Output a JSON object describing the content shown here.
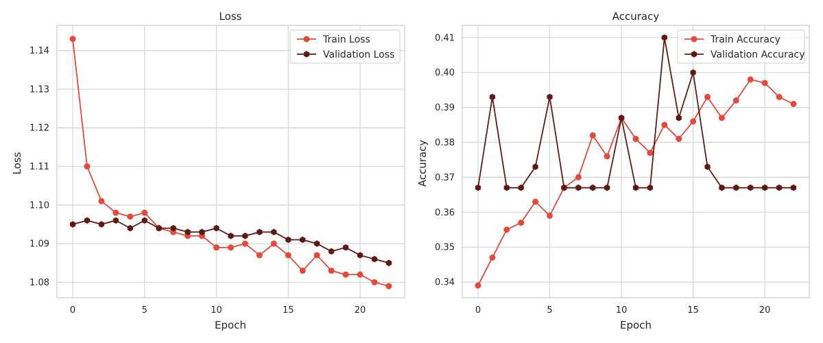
{
  "colors": {
    "train": "#e24a3b",
    "validation": "#5e1a12",
    "grid": "#d4d4d4",
    "axes_edge": "#cccccc",
    "text": "#262626",
    "background": "#ffffff"
  },
  "chart_data": [
    {
      "type": "line",
      "title": "Loss",
      "xlabel": "Epoch",
      "ylabel": "Loss",
      "xlim": [
        -1.1,
        23.1
      ],
      "ylim": [
        1.076,
        1.1465
      ],
      "xticks": [
        0,
        5,
        10,
        15,
        20
      ],
      "yticks": [
        1.08,
        1.09,
        1.1,
        1.11,
        1.12,
        1.13,
        1.14
      ],
      "ytick_labels": [
        "1.08",
        "1.09",
        "1.10",
        "1.11",
        "1.12",
        "1.13",
        "1.14"
      ],
      "grid": true,
      "legend_position": "top-right",
      "x": [
        0,
        1,
        2,
        3,
        4,
        5,
        6,
        7,
        8,
        9,
        10,
        11,
        12,
        13,
        14,
        15,
        16,
        17,
        18,
        19,
        20,
        21,
        22
      ],
      "series": [
        {
          "name": "Train Loss",
          "color_key": "train",
          "marker": "circle",
          "values": [
            1.143,
            1.11,
            1.101,
            1.098,
            1.097,
            1.098,
            1.094,
            1.093,
            1.092,
            1.092,
            1.089,
            1.089,
            1.09,
            1.087,
            1.09,
            1.087,
            1.083,
            1.087,
            1.083,
            1.082,
            1.082,
            1.08,
            1.079
          ]
        },
        {
          "name": "Validation Loss",
          "color_key": "validation",
          "marker": "hexagon",
          "values": [
            1.095,
            1.096,
            1.095,
            1.096,
            1.094,
            1.096,
            1.094,
            1.094,
            1.093,
            1.093,
            1.094,
            1.092,
            1.092,
            1.093,
            1.093,
            1.091,
            1.091,
            1.09,
            1.088,
            1.089,
            1.087,
            1.086,
            1.085
          ]
        }
      ]
    },
    {
      "type": "line",
      "title": "Accuracy",
      "xlabel": "Epoch",
      "ylabel": "Accuracy",
      "xlim": [
        -1.1,
        23.1
      ],
      "ylim": [
        0.3355,
        0.4135
      ],
      "xticks": [
        0,
        5,
        10,
        15,
        20
      ],
      "yticks": [
        0.34,
        0.35,
        0.36,
        0.37,
        0.38,
        0.39,
        0.4,
        0.41
      ],
      "ytick_labels": [
        "0.34",
        "0.35",
        "0.36",
        "0.37",
        "0.38",
        "0.39",
        "0.40",
        "0.41"
      ],
      "grid": true,
      "legend_position": "top-right",
      "x": [
        0,
        1,
        2,
        3,
        4,
        5,
        6,
        7,
        8,
        9,
        10,
        11,
        12,
        13,
        14,
        15,
        16,
        17,
        18,
        19,
        20,
        21,
        22
      ],
      "series": [
        {
          "name": "Train Accuracy",
          "color_key": "train",
          "marker": "circle",
          "values": [
            0.339,
            0.347,
            0.355,
            0.357,
            0.363,
            0.359,
            0.367,
            0.37,
            0.382,
            0.376,
            0.387,
            0.381,
            0.377,
            0.385,
            0.381,
            0.386,
            0.393,
            0.387,
            0.392,
            0.398,
            0.397,
            0.393,
            0.391
          ]
        },
        {
          "name": "Validation Accuracy",
          "color_key": "validation",
          "marker": "hexagon",
          "values": [
            0.367,
            0.393,
            0.367,
            0.367,
            0.373,
            0.393,
            0.367,
            0.367,
            0.367,
            0.367,
            0.387,
            0.367,
            0.367,
            0.41,
            0.387,
            0.4,
            0.373,
            0.367,
            0.367,
            0.367,
            0.367,
            0.367,
            0.367
          ]
        }
      ]
    }
  ]
}
